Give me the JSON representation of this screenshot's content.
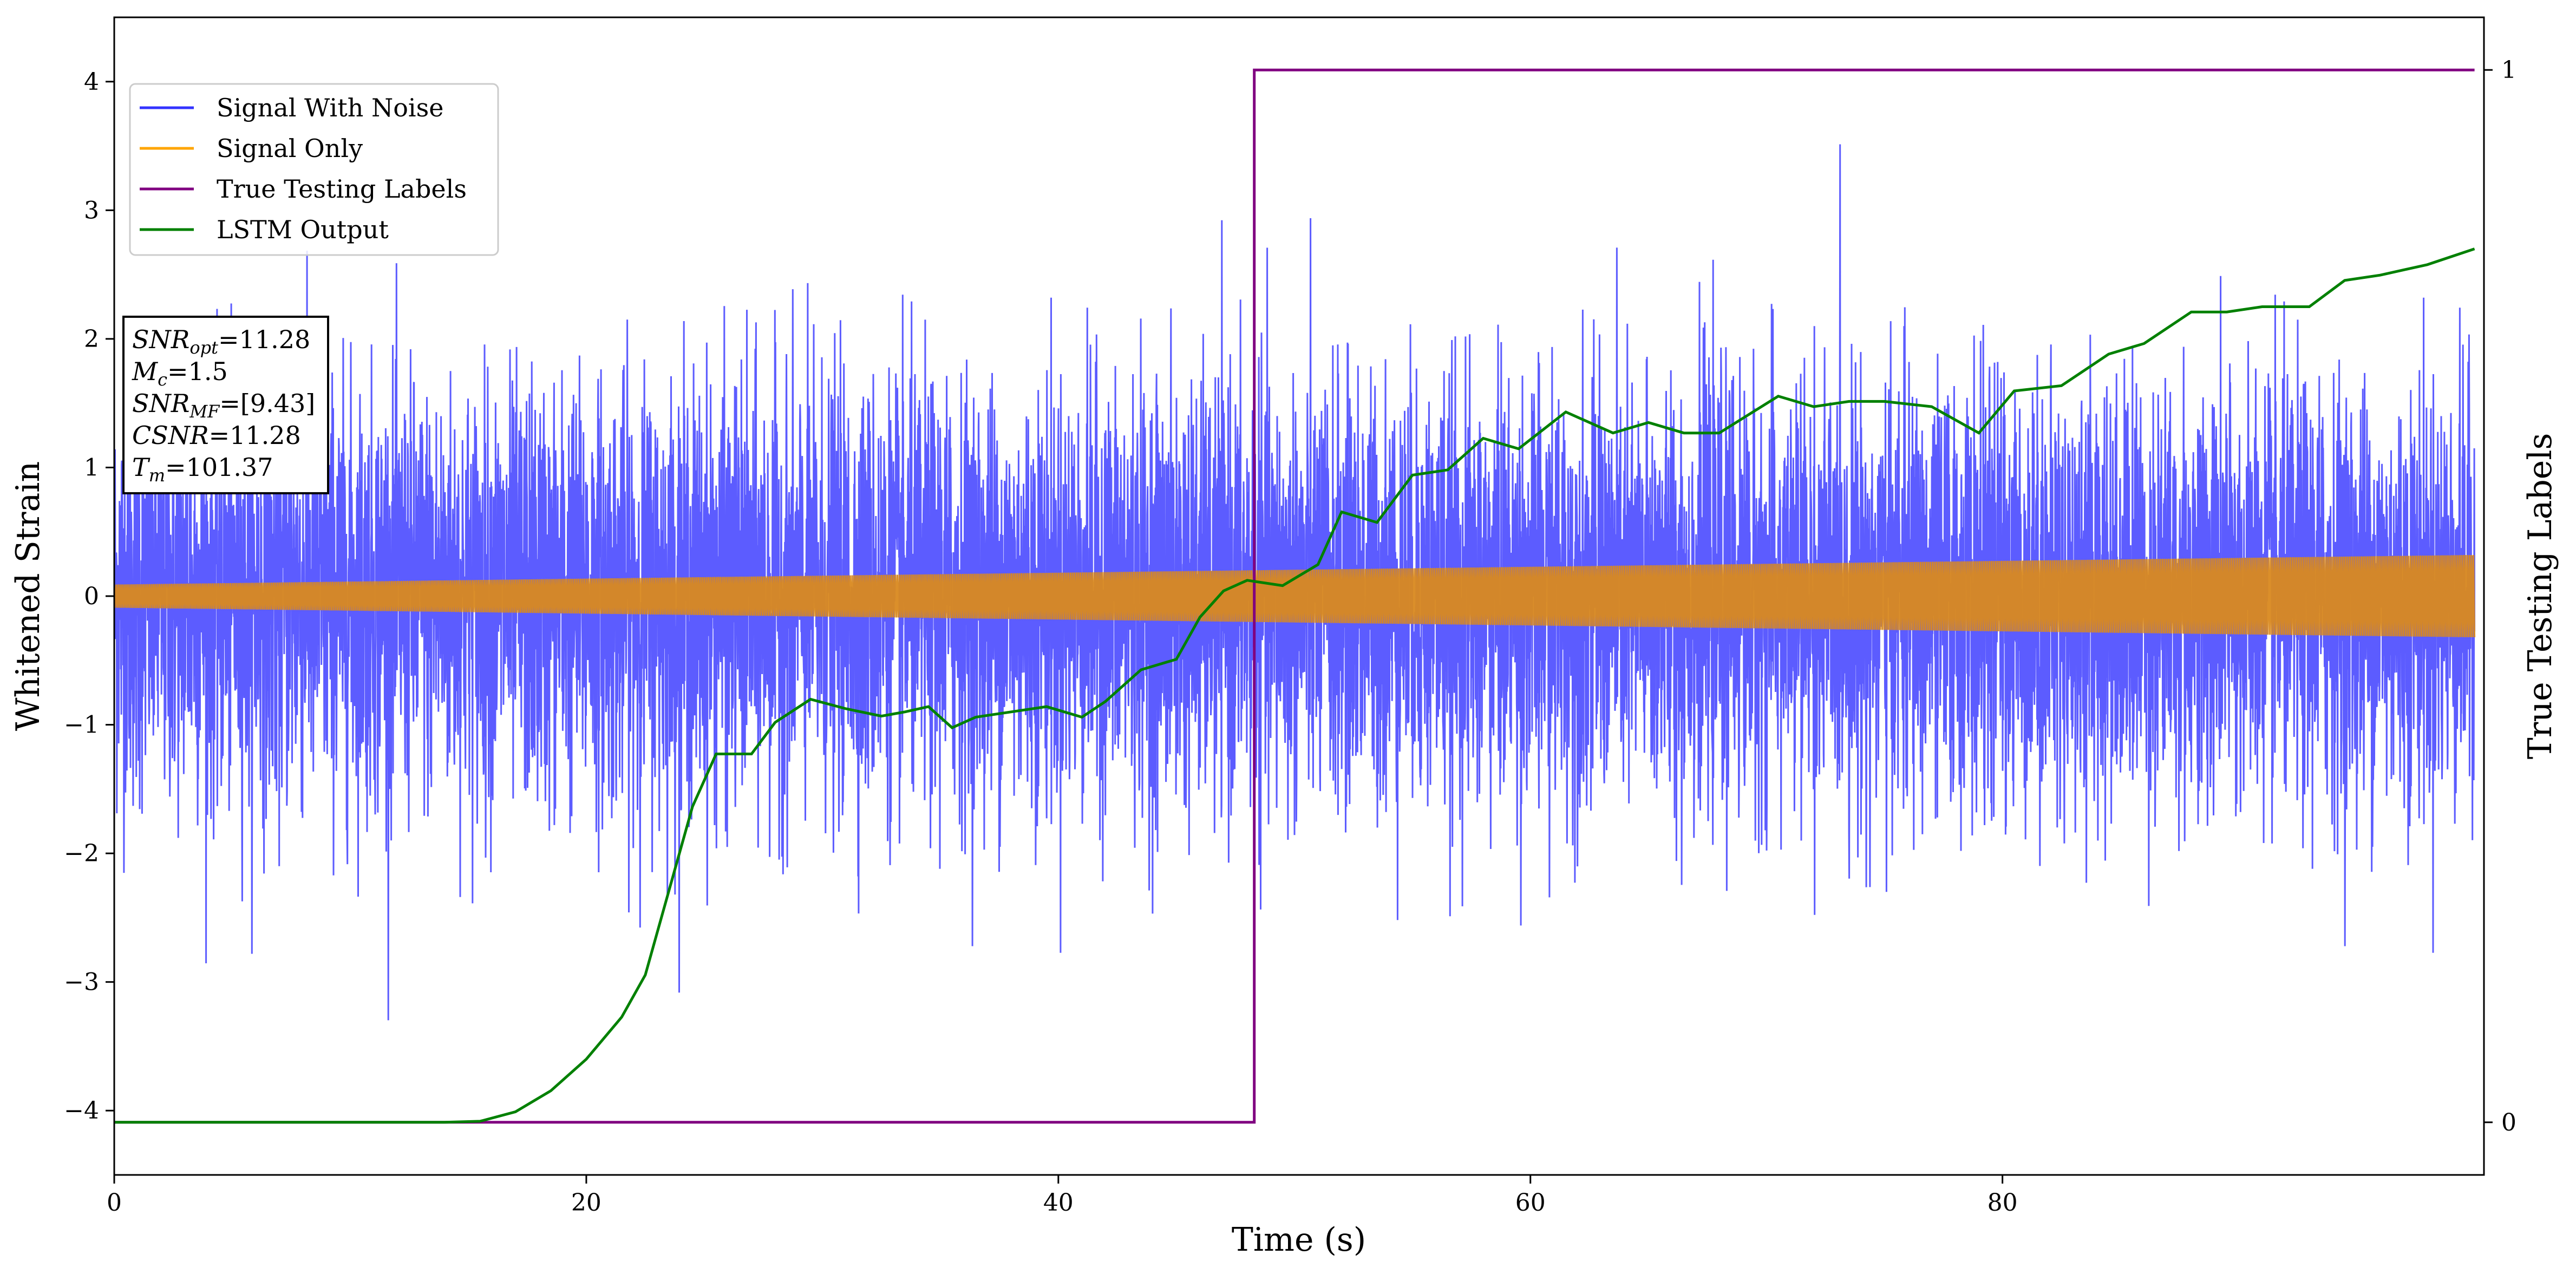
{
  "chart_data": {
    "type": "line",
    "xlabel": "Time (s)",
    "ylabel": "Whitened Strain",
    "y2label": "True Testing Labels",
    "xlim": [
      0,
      100.4
    ],
    "ylim": [
      -4.5,
      4.5
    ],
    "y2lim": [
      -0.05,
      1.05
    ],
    "x_ticks": [
      0,
      20,
      40,
      60,
      80
    ],
    "x_tick_labels": [
      "0",
      "20",
      "40",
      "60",
      "80"
    ],
    "y_ticks": [
      -4,
      -3,
      -2,
      -1,
      0,
      1,
      2,
      3,
      4
    ],
    "y_tick_labels": [
      "−4",
      "−3",
      "−2",
      "−1",
      "0",
      "1",
      "2",
      "3",
      "4"
    ],
    "y2_ticks": [
      0,
      1
    ],
    "y2_tick_labels": [
      "0",
      "1"
    ],
    "legend_placement": "upper-left",
    "series": [
      {
        "name": "Signal With Noise",
        "color": "#3333ff",
        "axis": "left",
        "kind": "noise",
        "envelope_std": 0.82,
        "peak_range": [
          -4.05,
          3.6
        ]
      },
      {
        "name": "Signal Only",
        "color": "#ffa500",
        "axis": "left",
        "kind": "chirp",
        "amplitude_start": 0.09,
        "amplitude_end": 0.32
      },
      {
        "name": "True Testing Labels",
        "color": "#800080",
        "axis": "right",
        "kind": "step",
        "points": [
          [
            0,
            0
          ],
          [
            48.3,
            0
          ],
          [
            48.3,
            1
          ],
          [
            100,
            1
          ]
        ]
      },
      {
        "name": "LSTM Output",
        "color": "#008000",
        "axis": "right",
        "kind": "line",
        "points": [
          [
            0,
            0.0
          ],
          [
            14,
            0.0
          ],
          [
            15.5,
            0.001
          ],
          [
            17,
            0.01
          ],
          [
            18.5,
            0.03
          ],
          [
            20,
            0.06
          ],
          [
            21.5,
            0.1
          ],
          [
            22.5,
            0.14
          ],
          [
            23.5,
            0.22
          ],
          [
            24.5,
            0.3
          ],
          [
            25.5,
            0.35
          ],
          [
            27,
            0.35
          ],
          [
            28,
            0.38
          ],
          [
            29.5,
            0.402
          ],
          [
            31,
            0.393
          ],
          [
            32.5,
            0.386
          ],
          [
            33.5,
            0.39
          ],
          [
            34.5,
            0.395
          ],
          [
            35.5,
            0.375
          ],
          [
            36.5,
            0.385
          ],
          [
            38,
            0.39
          ],
          [
            39.5,
            0.395
          ],
          [
            41,
            0.385
          ],
          [
            42,
            0.4
          ],
          [
            43.5,
            0.43
          ],
          [
            45,
            0.44
          ],
          [
            46,
            0.48
          ],
          [
            47,
            0.505
          ],
          [
            48,
            0.515
          ],
          [
            49.5,
            0.51
          ],
          [
            51,
            0.53
          ],
          [
            52,
            0.58
          ],
          [
            53.5,
            0.57
          ],
          [
            55,
            0.615
          ],
          [
            56.5,
            0.62
          ],
          [
            58,
            0.65
          ],
          [
            59.5,
            0.64
          ],
          [
            61.5,
            0.675
          ],
          [
            63.5,
            0.655
          ],
          [
            65,
            0.665
          ],
          [
            66.5,
            0.655
          ],
          [
            68,
            0.655
          ],
          [
            70.5,
            0.69
          ],
          [
            72,
            0.68
          ],
          [
            73.5,
            0.685
          ],
          [
            75,
            0.685
          ],
          [
            77,
            0.68
          ],
          [
            79,
            0.655
          ],
          [
            80.5,
            0.695
          ],
          [
            82.5,
            0.7
          ],
          [
            84.5,
            0.73
          ],
          [
            86,
            0.74
          ],
          [
            88,
            0.77
          ],
          [
            89.5,
            0.77
          ],
          [
            91,
            0.775
          ],
          [
            93,
            0.775
          ],
          [
            94.5,
            0.8
          ],
          [
            96,
            0.805
          ],
          [
            98,
            0.815
          ],
          [
            100,
            0.83
          ]
        ]
      }
    ],
    "annotation": {
      "lines": [
        {
          "var": "SNR",
          "sub": "opt",
          "value": "=11.28"
        },
        {
          "var": "M",
          "sub": "c",
          "value": "=1.5"
        },
        {
          "var": "SNR",
          "sub": "MF",
          "value": "=[9.43]"
        },
        {
          "var": "CSNR",
          "sub": "",
          "value": "=11.28"
        },
        {
          "var": "T",
          "sub": "m",
          "value": "=101.37"
        }
      ]
    }
  }
}
